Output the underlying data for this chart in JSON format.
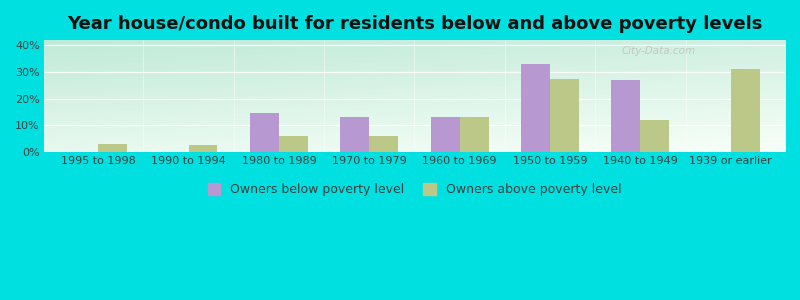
{
  "title": "Year house/condo built for residents below and above poverty levels",
  "categories": [
    "1995 to 1998",
    "1990 to 1994",
    "1980 to 1989",
    "1970 to 1979",
    "1960 to 1969",
    "1950 to 1959",
    "1940 to 1949",
    "1939 or earlier"
  ],
  "below_poverty": [
    0.0,
    0.0,
    14.5,
    13.0,
    13.0,
    33.0,
    27.0,
    0.0
  ],
  "above_poverty": [
    3.0,
    2.5,
    6.0,
    6.0,
    13.0,
    27.5,
    12.0,
    31.0
  ],
  "below_color": "#b898d0",
  "above_color": "#bcc888",
  "bg_top_left": "#c0ead8",
  "bg_bottom_right": "#f8fff8",
  "yticks": [
    0,
    10,
    20,
    30,
    40
  ],
  "ylim": [
    0,
    42
  ],
  "xlim_left": -0.6,
  "xlim_right": 7.6,
  "legend_below": "Owners below poverty level",
  "legend_above": "Owners above poverty level",
  "bar_width": 0.32,
  "outer_bg": "#00e0e0",
  "title_fontsize": 13,
  "tick_fontsize": 8,
  "legend_fontsize": 9,
  "watermark": "City-Data.com"
}
